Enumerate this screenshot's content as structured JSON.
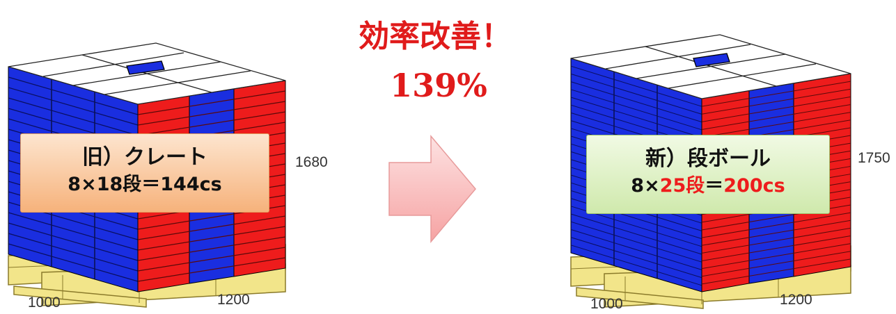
{
  "headline": {
    "title": "効率改善！",
    "percent": "139%"
  },
  "old_pallet": {
    "label_line1": "旧）クレート",
    "label_line2": "8×18段＝144cs",
    "height_dim": "1680",
    "width_dim": "1000",
    "depth_dim": "1200"
  },
  "new_pallet": {
    "label_line1": "新）段ボール",
    "label_line2_prefix": "8×",
    "label_line2_tiers": "25段",
    "label_line2_eq": "＝",
    "label_line2_total": "200cs",
    "height_dim": "1750",
    "width_dim": "1000",
    "depth_dim": "1200"
  },
  "colors": {
    "blue": "#1a2ee0",
    "red": "#ee1c1c",
    "pallet": "#f2e58a",
    "headline": "#e01b1b"
  }
}
